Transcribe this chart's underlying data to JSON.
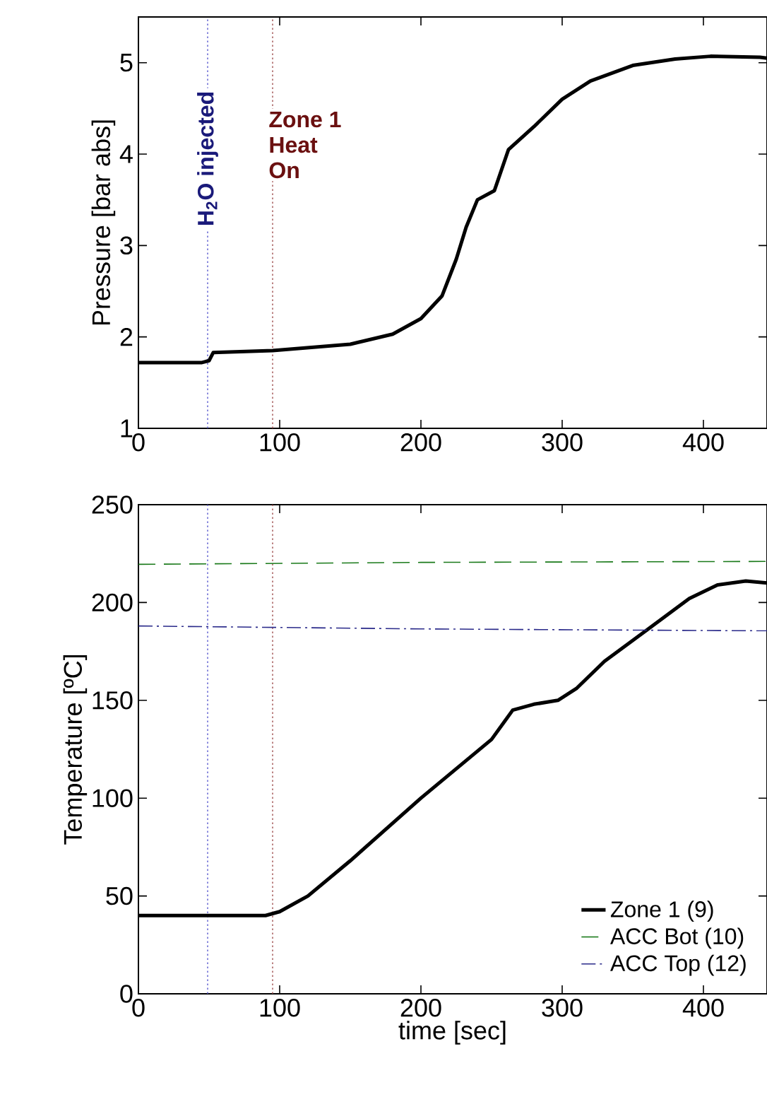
{
  "chart_data": [
    {
      "type": "line",
      "ylabel": "Pressure [bar abs]",
      "xlim": [
        0,
        445
      ],
      "ylim": [
        1,
        5.5
      ],
      "xticks": [
        0,
        100,
        200,
        300,
        400
      ],
      "yticks": [
        1,
        2,
        3,
        4,
        5
      ],
      "series": [
        {
          "color": "#000000",
          "line_style": "solid",
          "x": [
            0,
            45,
            50,
            53,
            95,
            150,
            180,
            200,
            215,
            225,
            232,
            240,
            252,
            262,
            280,
            300,
            320,
            350,
            380,
            405,
            440,
            445
          ],
          "values": [
            1.72,
            1.72,
            1.74,
            1.83,
            1.85,
            1.92,
            2.03,
            2.2,
            2.45,
            2.85,
            3.2,
            3.5,
            3.6,
            4.05,
            4.3,
            4.6,
            4.8,
            4.97,
            5.04,
            5.07,
            5.06,
            5.05
          ]
        }
      ],
      "ref_lines": [
        {
          "axis": "x",
          "value": 49,
          "label": "H$_{2}$O injected",
          "color": "#5a5acf",
          "line_style": "dotted"
        },
        {
          "axis": "x",
          "value": 95,
          "label": "Zone 1 Heat On",
          "color": "#a05050",
          "line_style": "dotted"
        }
      ]
    },
    {
      "type": "line",
      "xlabel": "time [sec]",
      "ylabel": "Temperature [ºC]",
      "xlim": [
        0,
        445
      ],
      "ylim": [
        0,
        250
      ],
      "xticks": [
        0,
        100,
        200,
        300,
        400
      ],
      "yticks": [
        0,
        50,
        100,
        150,
        200,
        250
      ],
      "legend": "bottom right",
      "series": [
        {
          "name": "Zone 1 (9)",
          "color": "#000000",
          "line_style": "solid",
          "x": [
            0,
            50,
            90,
            100,
            120,
            150,
            200,
            250,
            265,
            280,
            297,
            310,
            330,
            360,
            390,
            410,
            430,
            445
          ],
          "values": [
            40,
            40,
            40,
            42,
            50,
            68,
            100,
            130,
            145,
            148,
            150,
            156,
            170,
            186,
            202,
            209,
            211,
            210
          ]
        },
        {
          "name": "ACC Bot (10)",
          "color": "#1a7a1a",
          "line_style": "dashed",
          "x": [
            0,
            200,
            445
          ],
          "values": [
            219.5,
            220.5,
            221
          ]
        },
        {
          "name": "ACC Top (12)",
          "color": "#2a2a8a",
          "line_style": "dashdot",
          "x": [
            0,
            200,
            445
          ],
          "values": [
            188,
            186.5,
            185.5
          ]
        }
      ],
      "ref_lines": [
        {
          "axis": "x",
          "value": 49,
          "color": "#5a5acf",
          "line_style": "dotted"
        },
        {
          "axis": "x",
          "value": 95,
          "color": "#a05050",
          "line_style": "dotted"
        }
      ]
    }
  ]
}
